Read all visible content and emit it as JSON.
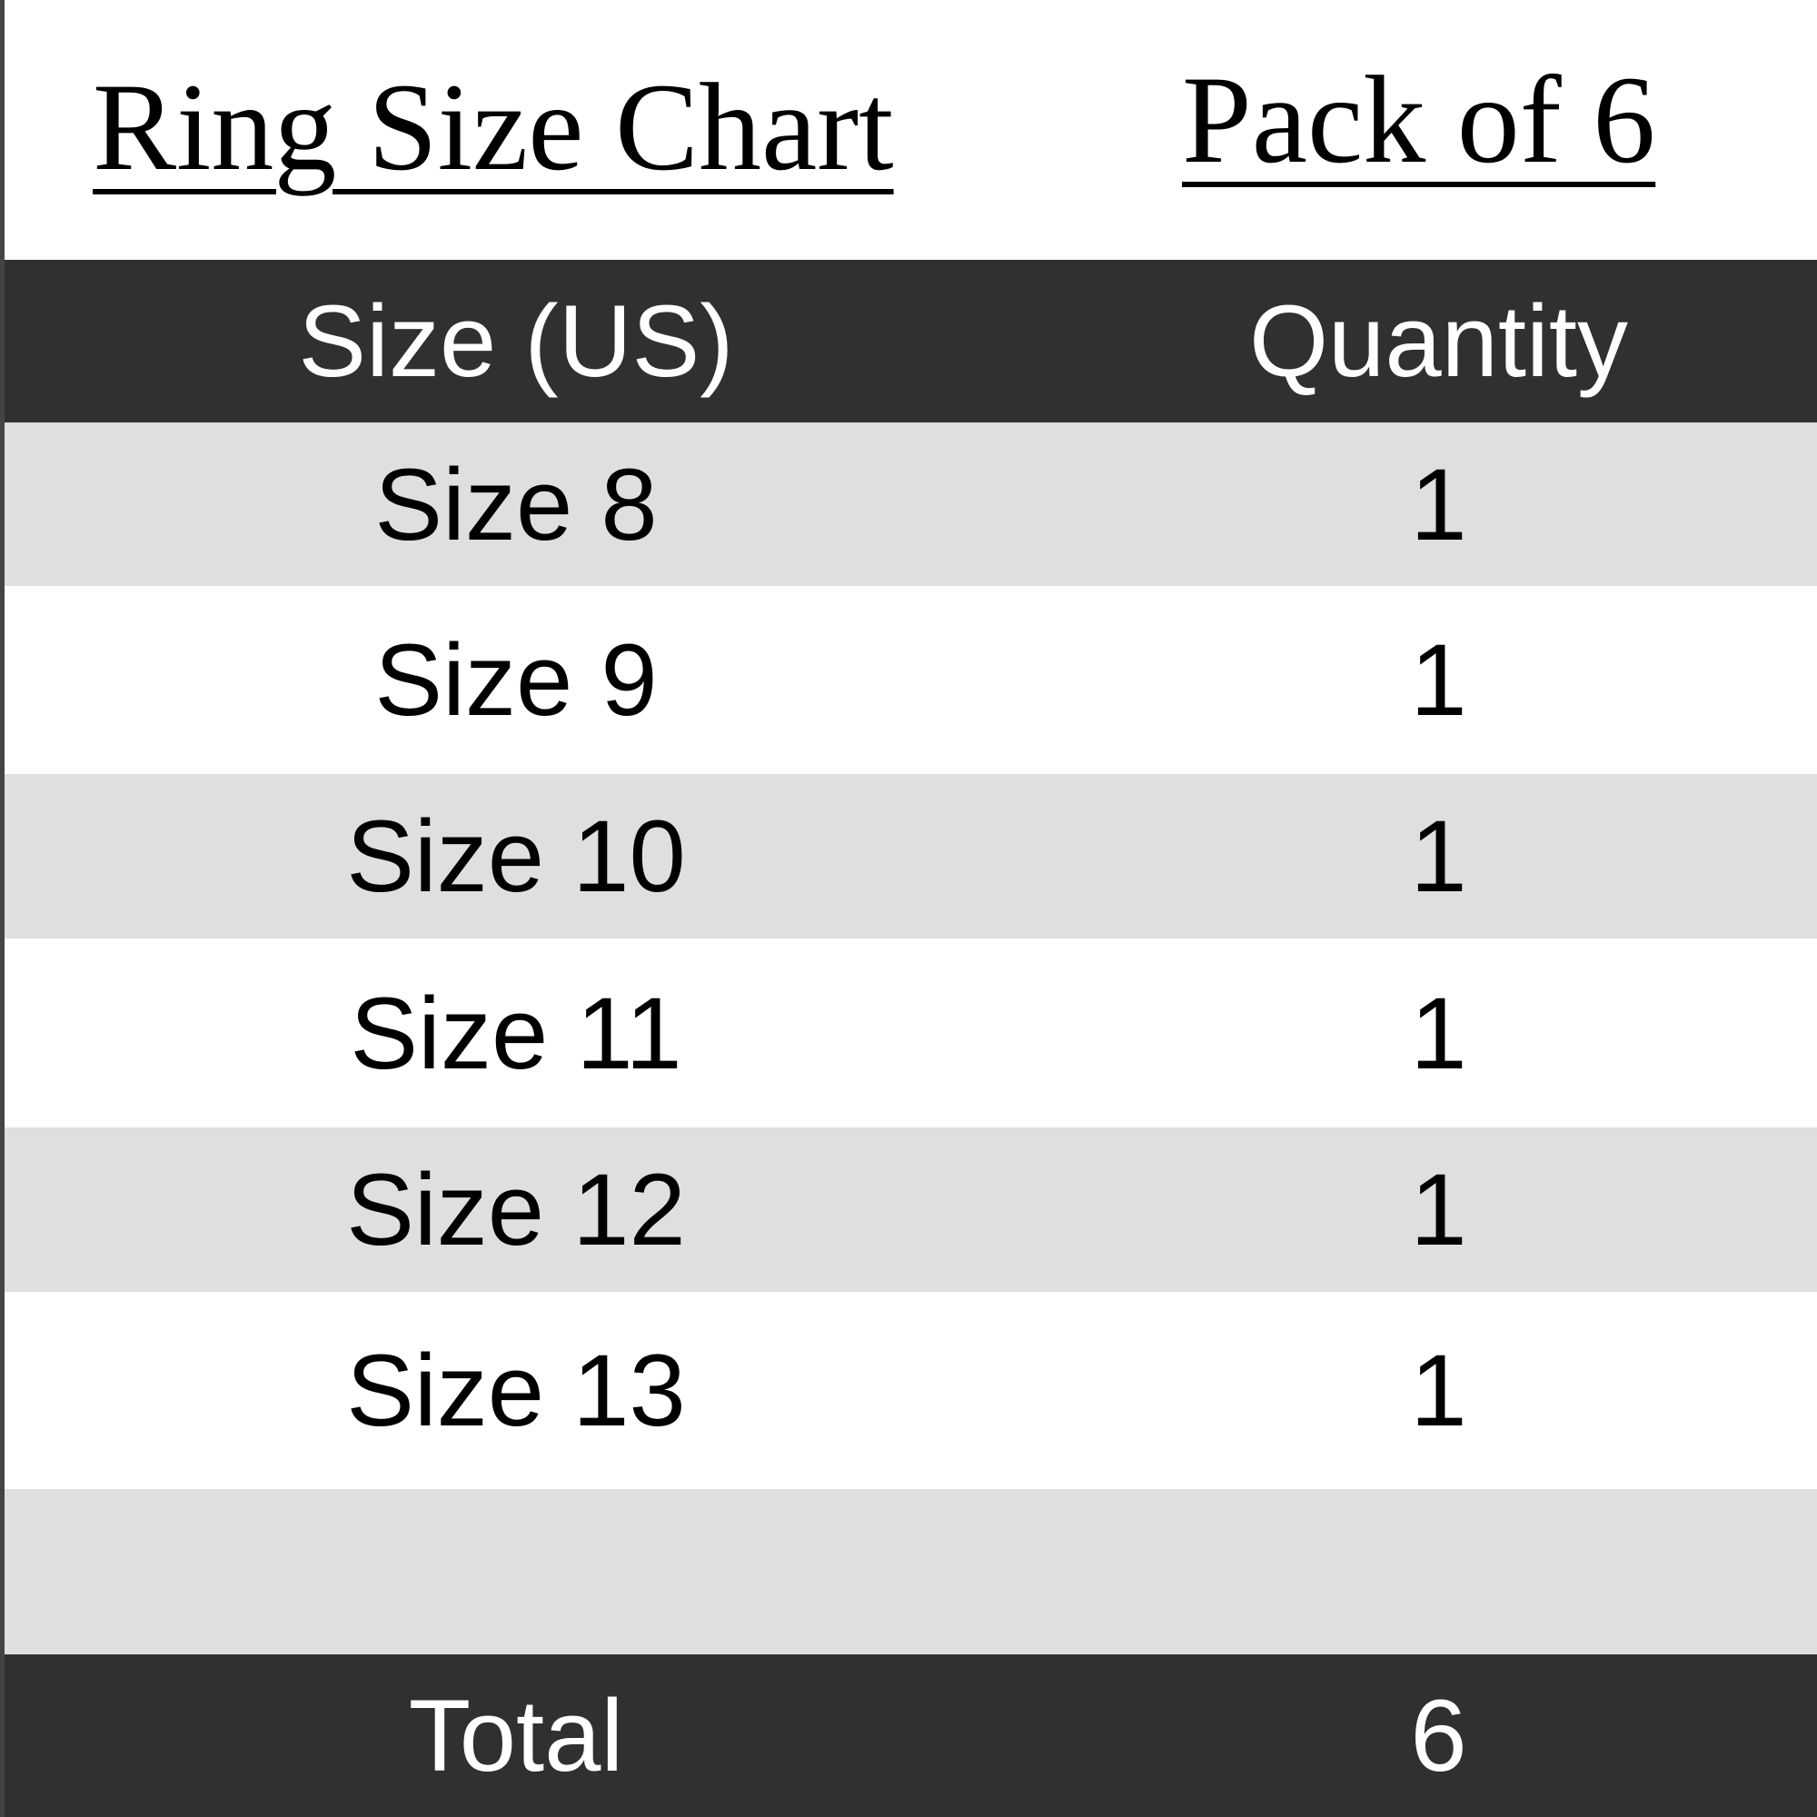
{
  "title": "Ring Size Chart",
  "pack": "Pack of 6",
  "table": {
    "headers": [
      "Size (US)",
      "Quantity"
    ],
    "rows": [
      [
        "Size 8",
        "1"
      ],
      [
        "Size 9",
        "1"
      ],
      [
        "Size 10",
        "1"
      ],
      [
        "Size 11",
        "1"
      ],
      [
        "Size 12",
        "1"
      ],
      [
        "Size 13",
        "1"
      ],
      [
        "",
        ""
      ]
    ],
    "total": [
      "Total",
      "6"
    ]
  },
  "colors": {
    "header": "#303030",
    "stripe": "#dfdfdf"
  }
}
